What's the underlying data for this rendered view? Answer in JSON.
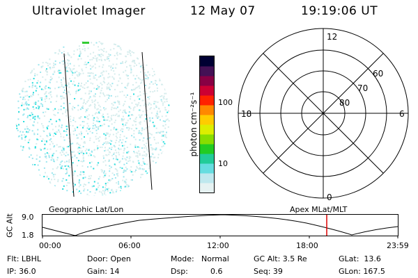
{
  "header": {
    "instrument": "Ultraviolet Imager",
    "date": "12 May 07",
    "time": "19:19:06 UT"
  },
  "colorbar": {
    "label": "photon cm⁻²s⁻¹",
    "ticks": [
      "100",
      "10"
    ],
    "colors": [
      "#e6f2f2",
      "#bfe8ee",
      "#66dde0",
      "#22cc99",
      "#22cc22",
      "#88dd00",
      "#ddee00",
      "#ffcc00",
      "#ff8800",
      "#ff2200",
      "#cc0033",
      "#880044",
      "#441155",
      "#000033"
    ]
  },
  "polar": {
    "mlt_labels": {
      "top": "12",
      "bottom": "0",
      "left": "18",
      "right": "6"
    },
    "lat_labels": [
      "60",
      "70",
      "80"
    ]
  },
  "timeline": {
    "left_title": "Geographic Lat/Lon",
    "right_title": "Apex MLat/MLT",
    "axis_label": "GC Alt",
    "y_ticks": [
      "9.0",
      "1.8"
    ],
    "x_ticks": [
      "00:00",
      "06:00",
      "12:00",
      "18:00",
      "23:59"
    ],
    "marker_color": "#dd0000"
  },
  "info": {
    "flt": "Flt: LBHL",
    "ip": "IP: 36.0",
    "door": "Door: Open",
    "gain": "Gain: 14",
    "mode_key": "Mode:",
    "mode_val": "Normal",
    "dsp_key": "Dsp:",
    "dsp_val": "0.6",
    "gcalt": "GC Alt: 3.5 Re",
    "seq": "Seq: 39",
    "glat": "GLat:  13.6",
    "glon": "GLon: 167.5"
  }
}
